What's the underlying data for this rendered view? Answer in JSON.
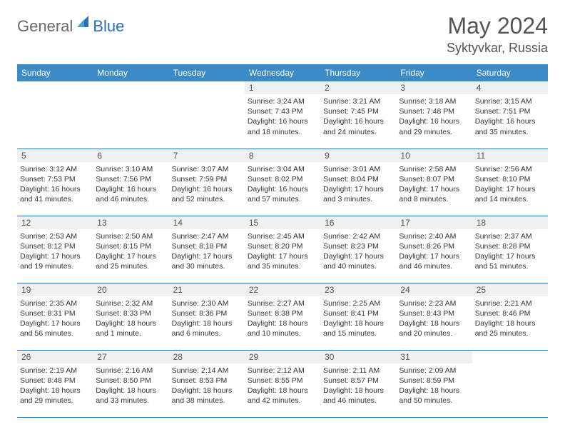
{
  "logo": {
    "text1": "General",
    "text2": "Blue"
  },
  "title": "May 2024",
  "location": "Syktyvkar, Russia",
  "dayNames": [
    "Sunday",
    "Monday",
    "Tuesday",
    "Wednesday",
    "Thursday",
    "Friday",
    "Saturday"
  ],
  "colors": {
    "header_bg": "#3b8bc9",
    "border": "#2d6fb5",
    "daynum_bg": "#eef0f2",
    "logo_gray": "#6a6a6a",
    "logo_blue": "#2d6fb5",
    "text": "#333333",
    "title_text": "#555555"
  },
  "weeks": [
    [
      {
        "n": "",
        "empty": true
      },
      {
        "n": "",
        "empty": true
      },
      {
        "n": "",
        "empty": true
      },
      {
        "n": "1",
        "sr": "3:24 AM",
        "ss": "7:43 PM",
        "dl": "16 hours and 18 minutes."
      },
      {
        "n": "2",
        "sr": "3:21 AM",
        "ss": "7:45 PM",
        "dl": "16 hours and 24 minutes."
      },
      {
        "n": "3",
        "sr": "3:18 AM",
        "ss": "7:48 PM",
        "dl": "16 hours and 29 minutes."
      },
      {
        "n": "4",
        "sr": "3:15 AM",
        "ss": "7:51 PM",
        "dl": "16 hours and 35 minutes."
      }
    ],
    [
      {
        "n": "5",
        "sr": "3:12 AM",
        "ss": "7:53 PM",
        "dl": "16 hours and 41 minutes."
      },
      {
        "n": "6",
        "sr": "3:10 AM",
        "ss": "7:56 PM",
        "dl": "16 hours and 46 minutes."
      },
      {
        "n": "7",
        "sr": "3:07 AM",
        "ss": "7:59 PM",
        "dl": "16 hours and 52 minutes."
      },
      {
        "n": "8",
        "sr": "3:04 AM",
        "ss": "8:02 PM",
        "dl": "16 hours and 57 minutes."
      },
      {
        "n": "9",
        "sr": "3:01 AM",
        "ss": "8:04 PM",
        "dl": "17 hours and 3 minutes."
      },
      {
        "n": "10",
        "sr": "2:58 AM",
        "ss": "8:07 PM",
        "dl": "17 hours and 8 minutes."
      },
      {
        "n": "11",
        "sr": "2:56 AM",
        "ss": "8:10 PM",
        "dl": "17 hours and 14 minutes."
      }
    ],
    [
      {
        "n": "12",
        "sr": "2:53 AM",
        "ss": "8:12 PM",
        "dl": "17 hours and 19 minutes."
      },
      {
        "n": "13",
        "sr": "2:50 AM",
        "ss": "8:15 PM",
        "dl": "17 hours and 25 minutes."
      },
      {
        "n": "14",
        "sr": "2:47 AM",
        "ss": "8:18 PM",
        "dl": "17 hours and 30 minutes."
      },
      {
        "n": "15",
        "sr": "2:45 AM",
        "ss": "8:20 PM",
        "dl": "17 hours and 35 minutes."
      },
      {
        "n": "16",
        "sr": "2:42 AM",
        "ss": "8:23 PM",
        "dl": "17 hours and 40 minutes."
      },
      {
        "n": "17",
        "sr": "2:40 AM",
        "ss": "8:26 PM",
        "dl": "17 hours and 46 minutes."
      },
      {
        "n": "18",
        "sr": "2:37 AM",
        "ss": "8:28 PM",
        "dl": "17 hours and 51 minutes."
      }
    ],
    [
      {
        "n": "19",
        "sr": "2:35 AM",
        "ss": "8:31 PM",
        "dl": "17 hours and 56 minutes."
      },
      {
        "n": "20",
        "sr": "2:32 AM",
        "ss": "8:33 PM",
        "dl": "18 hours and 1 minute."
      },
      {
        "n": "21",
        "sr": "2:30 AM",
        "ss": "8:36 PM",
        "dl": "18 hours and 6 minutes."
      },
      {
        "n": "22",
        "sr": "2:27 AM",
        "ss": "8:38 PM",
        "dl": "18 hours and 10 minutes."
      },
      {
        "n": "23",
        "sr": "2:25 AM",
        "ss": "8:41 PM",
        "dl": "18 hours and 15 minutes."
      },
      {
        "n": "24",
        "sr": "2:23 AM",
        "ss": "8:43 PM",
        "dl": "18 hours and 20 minutes."
      },
      {
        "n": "25",
        "sr": "2:21 AM",
        "ss": "8:46 PM",
        "dl": "18 hours and 25 minutes."
      }
    ],
    [
      {
        "n": "26",
        "sr": "2:19 AM",
        "ss": "8:48 PM",
        "dl": "18 hours and 29 minutes."
      },
      {
        "n": "27",
        "sr": "2:16 AM",
        "ss": "8:50 PM",
        "dl": "18 hours and 33 minutes."
      },
      {
        "n": "28",
        "sr": "2:14 AM",
        "ss": "8:53 PM",
        "dl": "18 hours and 38 minutes."
      },
      {
        "n": "29",
        "sr": "2:12 AM",
        "ss": "8:55 PM",
        "dl": "18 hours and 42 minutes."
      },
      {
        "n": "30",
        "sr": "2:11 AM",
        "ss": "8:57 PM",
        "dl": "18 hours and 46 minutes."
      },
      {
        "n": "31",
        "sr": "2:09 AM",
        "ss": "8:59 PM",
        "dl": "18 hours and 50 minutes."
      },
      {
        "n": "",
        "empty": true
      }
    ]
  ],
  "labels": {
    "sunrise": "Sunrise: ",
    "sunset": "Sunset: ",
    "daylight": "Daylight: "
  }
}
